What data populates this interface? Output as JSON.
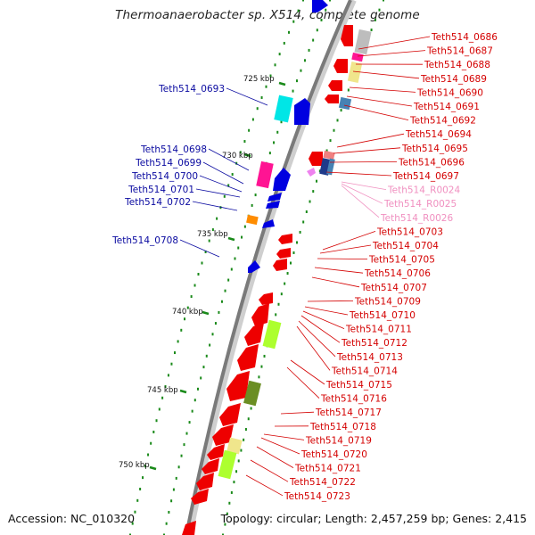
{
  "title": "Thermoanaerobacter sp. X514, complete genome",
  "accession": "Accession: NC_010320",
  "summary": "Topology: circular; Length: 2,457,259 bp; Genes: 2,415",
  "colors": {
    "forward_label": "#0a0aa0",
    "reverse_label": "#d40000",
    "rna_label": "#f090c0",
    "backbone": "#808080",
    "tick": "#1a8a1a"
  },
  "kbp_ticks": [
    "725 kbp",
    "730 kbp",
    "735 kbp",
    "740 kbp",
    "745 kbp",
    "750 kbp"
  ],
  "forward_labels": [
    "Teth514_0693",
    "Teth514_0698",
    "Teth514_0699",
    "Teth514_0700",
    "Teth514_0701",
    "Teth514_0702",
    "Teth514_0708"
  ],
  "reverse_labels": [
    "Teth514_0686",
    "Teth514_0687",
    "Teth514_0688",
    "Teth514_0689",
    "Teth514_0690",
    "Teth514_0691",
    "Teth514_0692",
    "Teth514_0694",
    "Teth514_0695",
    "Teth514_0696",
    "Teth514_0697",
    "Teth514_R0024",
    "Teth514_R0025",
    "Teth514_R0026",
    "Teth514_0703",
    "Teth514_0704",
    "Teth514_0705",
    "Teth514_0706",
    "Teth514_0707",
    "Teth514_0709",
    "Teth514_0710",
    "Teth514_0711",
    "Teth514_0712",
    "Teth514_0713",
    "Teth514_0714",
    "Teth514_0715",
    "Teth514_0716",
    "Teth514_0717",
    "Teth514_0718",
    "Teth514_0719",
    "Teth514_0720",
    "Teth514_0721",
    "Teth514_0722",
    "Teth514_0723"
  ]
}
